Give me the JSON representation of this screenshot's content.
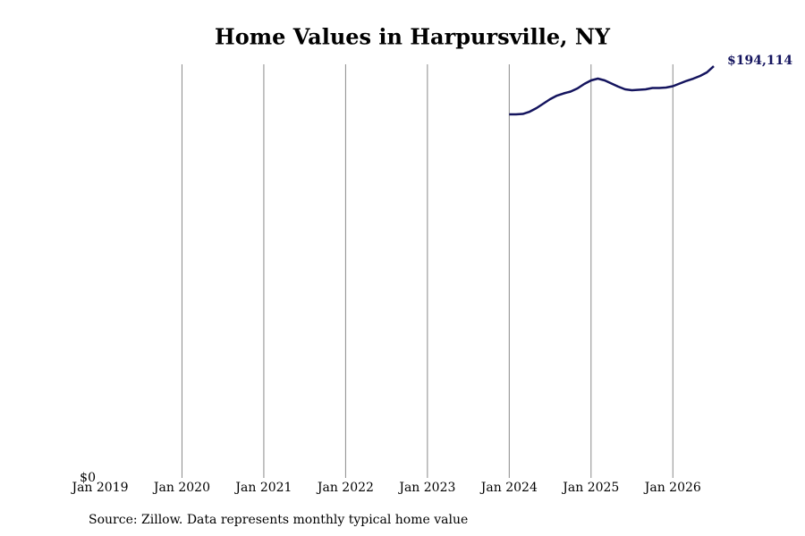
{
  "chart_data": {
    "type": "line",
    "title": "Home Values in Harpursville, NY",
    "source": "Source: Zillow. Data represents monthly typical home value",
    "x": [
      "2024-01",
      "2024-02",
      "2024-03",
      "2024-04",
      "2024-05",
      "2024-06",
      "2024-07",
      "2024-08",
      "2024-09",
      "2024-10",
      "2024-11",
      "2024-12",
      "2025-01",
      "2025-02",
      "2025-03",
      "2025-04",
      "2025-05",
      "2025-06",
      "2025-07",
      "2025-08",
      "2025-09",
      "2025-10",
      "2025-11",
      "2025-12",
      "2026-01",
      "2026-02",
      "2026-03",
      "2026-04",
      "2026-05",
      "2026-06",
      "2026-07"
    ],
    "series": [
      {
        "color": "#14145e",
        "values": [
          171412,
          171412,
          171600,
          172676,
          174360,
          176466,
          178572,
          180256,
          181309,
          182152,
          183626,
          185732,
          187416,
          188259,
          187416,
          185942,
          184468,
          183205,
          182783,
          182994,
          183205,
          183836,
          183836,
          184047,
          184679,
          185942,
          187206,
          188259,
          189522,
          191207,
          194114
        ],
        "value_labels": [
          null,
          null,
          null,
          null,
          null,
          null,
          null,
          null,
          null,
          null,
          null,
          null,
          null,
          null,
          null,
          null,
          null,
          null,
          null,
          null,
          null,
          null,
          null,
          null,
          null,
          null,
          null,
          null,
          null,
          null,
          "$194,114"
        ]
      }
    ],
    "xlim": [
      "2019-01",
      "2026-07"
    ],
    "xticks": [
      {
        "value": "2019-01",
        "label": "Jan 2019"
      },
      {
        "value": "2020-01",
        "label": "Jan 2020"
      },
      {
        "value": "2021-01",
        "label": "Jan 2021"
      },
      {
        "value": "2022-01",
        "label": "Jan 2022"
      },
      {
        "value": "2023-01",
        "label": "Jan 2023"
      },
      {
        "value": "2024-01",
        "label": "Jan 2024"
      },
      {
        "value": "2025-01",
        "label": "Jan 2025"
      },
      {
        "value": "2026-01",
        "label": "Jan 2026"
      }
    ],
    "ylim": [
      0,
      195000
    ],
    "yticks": [
      {
        "value": 0,
        "label": "$0"
      }
    ],
    "grid": true
  }
}
